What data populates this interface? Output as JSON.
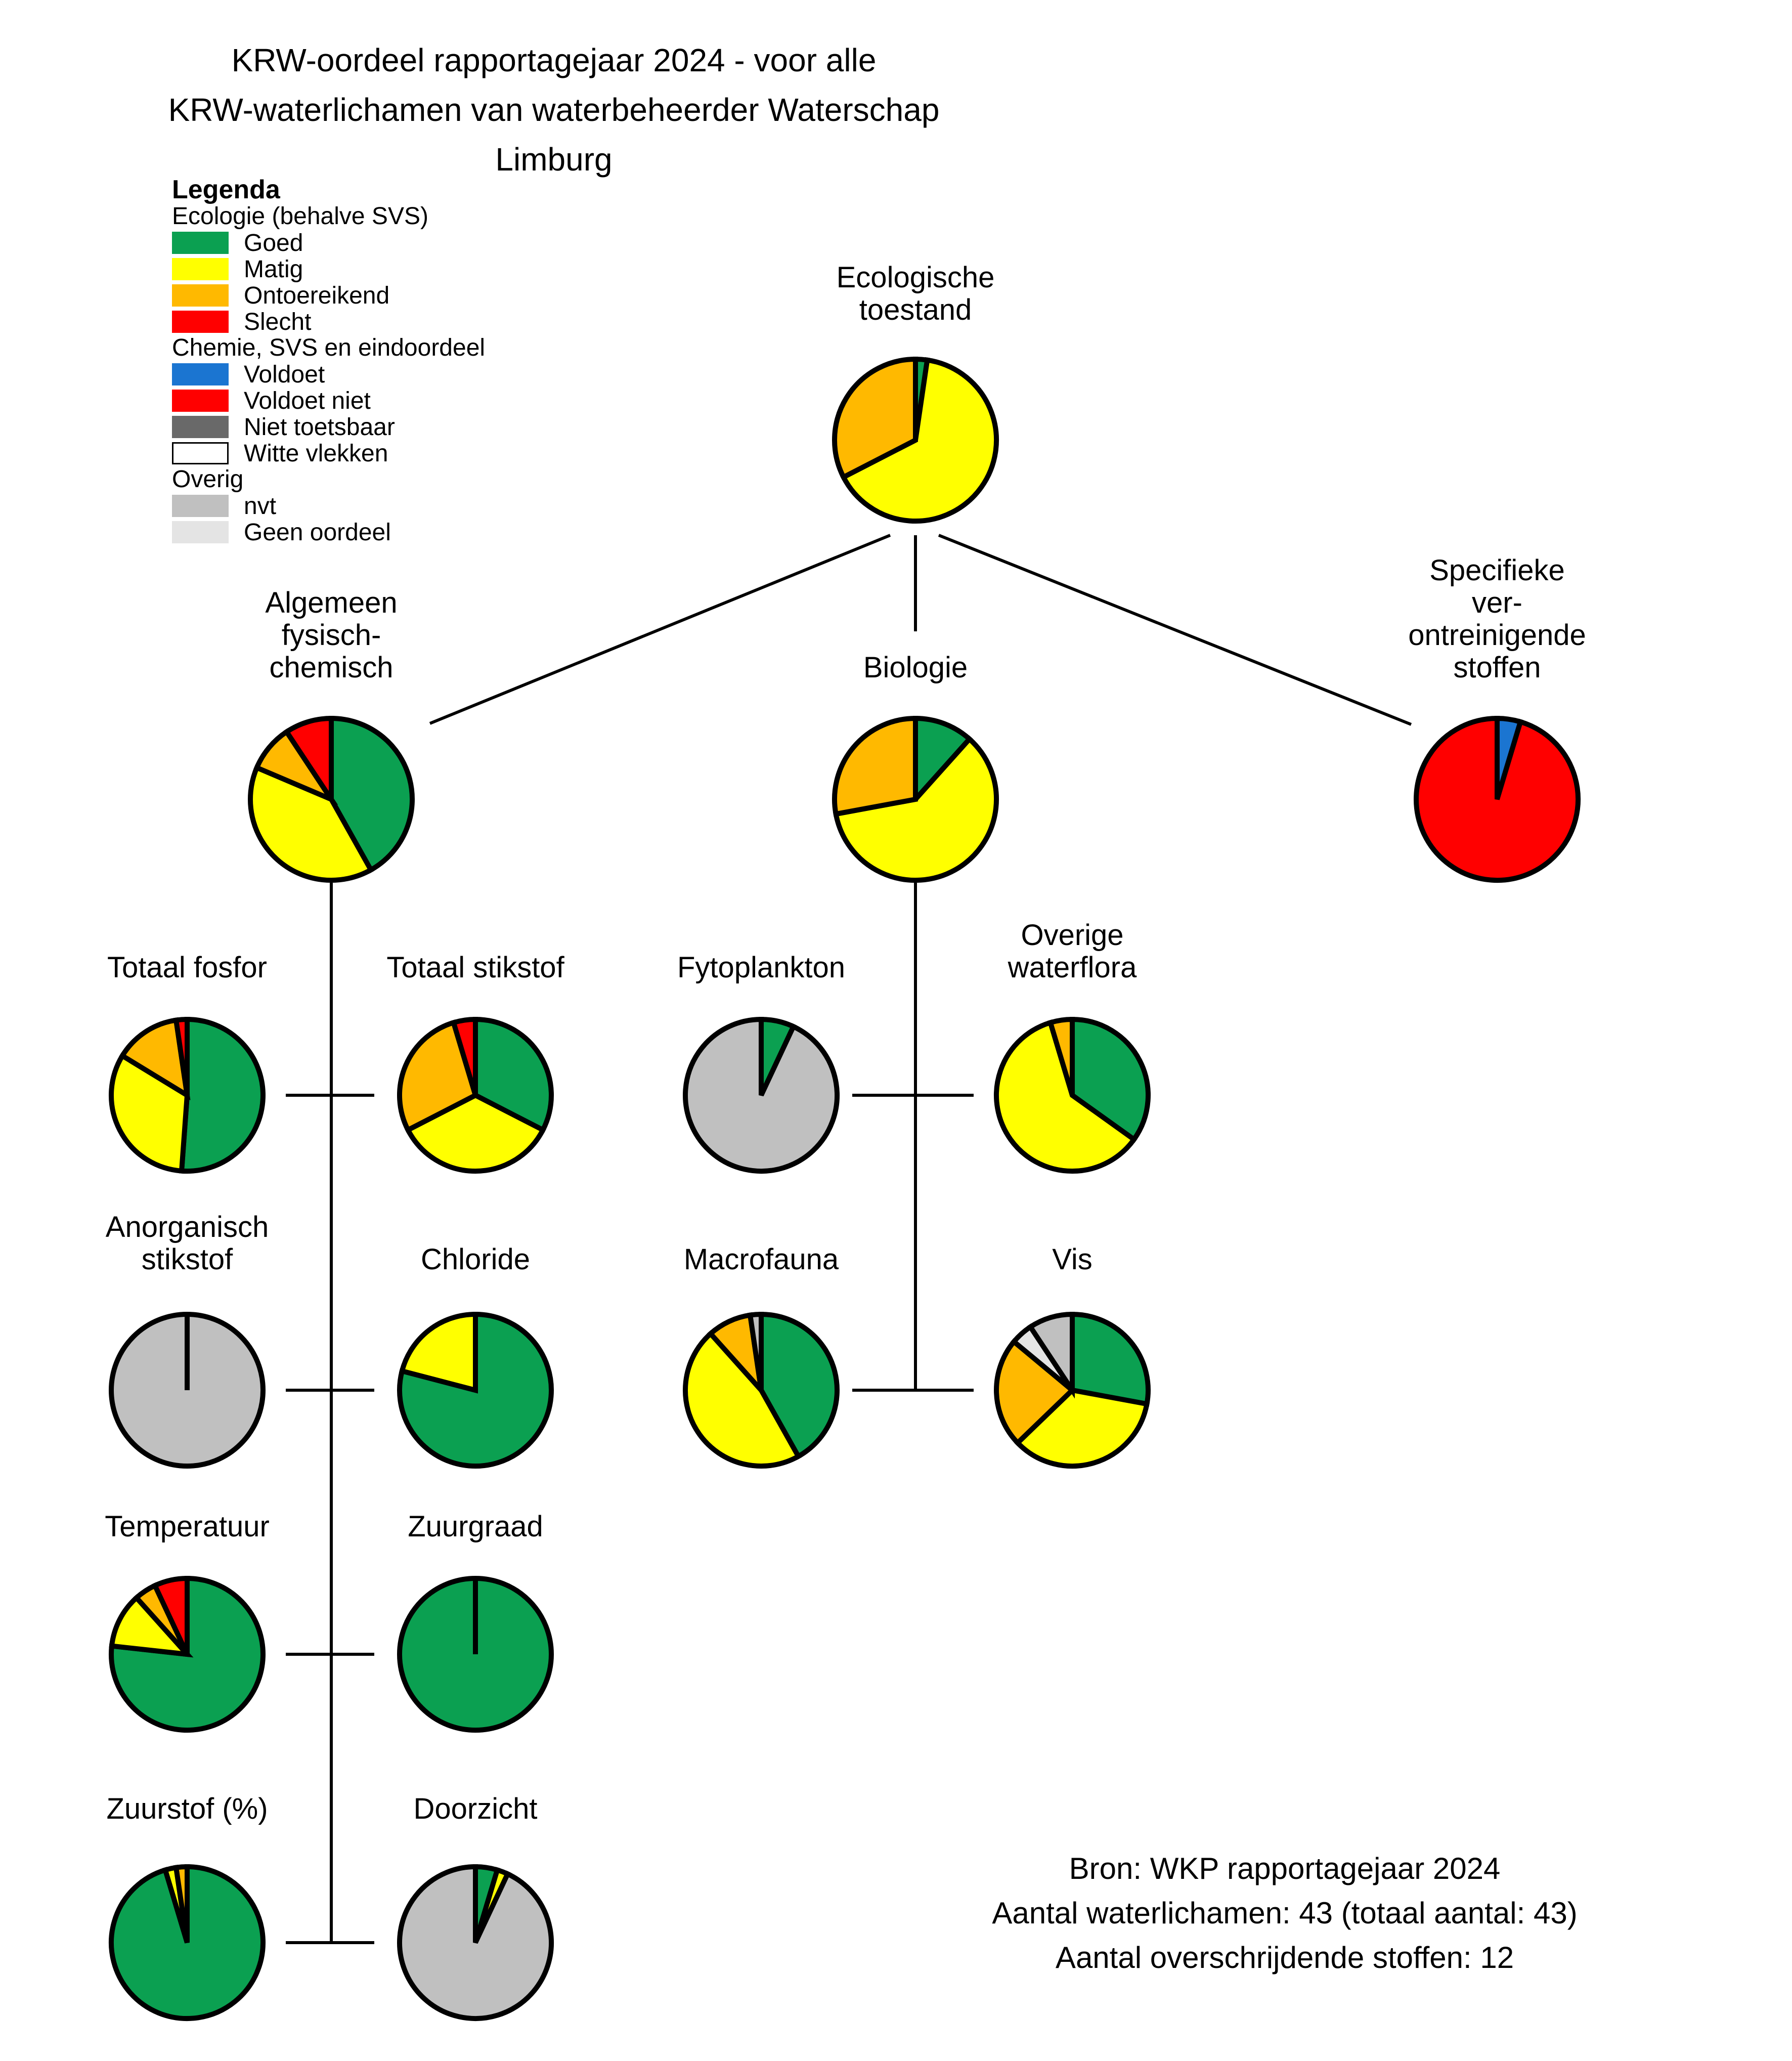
{
  "title": {
    "text": "KRW-oordeel rapportagejaar 2024 - voor alle\nKRW-waterlichamen van waterbeheerder Waterschap Limburg"
  },
  "palette": {
    "goed": "#0BA051",
    "matig": "#FFFF00",
    "ontoereikend": "#FFB900",
    "slecht": "#FF0000",
    "voldoet": "#1B75D1",
    "voldoet_niet": "#FF0000",
    "niet_toetsbaar": "#696969",
    "witte_vlekken": "#FFFFFF",
    "nvt": "#C0C0C0",
    "geen_oordeel": "#E4E4E4"
  },
  "legend": {
    "heading": "Legenda",
    "sections": [
      {
        "title": "Ecologie (behalve SVS)",
        "items": [
          {
            "key": "goed",
            "label": "Goed"
          },
          {
            "key": "matig",
            "label": "Matig"
          },
          {
            "key": "ontoereikend",
            "label": "Ontoereikend"
          },
          {
            "key": "slecht",
            "label": "Slecht"
          }
        ]
      },
      {
        "title": "Chemie, SVS en eindoordeel",
        "items": [
          {
            "key": "voldoet",
            "label": "Voldoet"
          },
          {
            "key": "voldoet_niet",
            "label": "Voldoet niet"
          },
          {
            "key": "niet_toetsbaar",
            "label": "Niet toetsbaar"
          },
          {
            "key": "witte_vlekken",
            "label": "Witte vlekken"
          }
        ]
      },
      {
        "title": "Overig",
        "items": [
          {
            "key": "nvt",
            "label": "nvt"
          },
          {
            "key": "geen_oordeel",
            "label": "Geen oordeel"
          }
        ]
      }
    ]
  },
  "footer": {
    "source": "Bron: WKP rapportagejaar 2024",
    "water_bodies": "Aantal waterlichamen: 43 (totaal aantal: 43)",
    "exceeding_substances": "Aantal overschrijdende stoffen: 12"
  },
  "chart_data": [
    {
      "id": "ecologische_toestand",
      "type": "pie",
      "title": "Ecologische\ntoestand",
      "total": 43,
      "unit": "waterlichamen",
      "slices": [
        {
          "status": "Goed",
          "key": "goed",
          "value": 1
        },
        {
          "status": "Matig",
          "key": "matig",
          "value": 28
        },
        {
          "status": "Ontoereikend",
          "key": "ontoereikend",
          "value": 14
        }
      ]
    },
    {
      "id": "algemeen_fysisch_chemisch",
      "type": "pie",
      "title": "Algemeen\nfysisch-\nchemisch",
      "total": 43,
      "unit": "waterlichamen",
      "slices": [
        {
          "status": "Goed",
          "key": "goed",
          "value": 18
        },
        {
          "status": "Matig",
          "key": "matig",
          "value": 17
        },
        {
          "status": "Ontoereikend",
          "key": "ontoereikend",
          "value": 4
        },
        {
          "status": "Slecht",
          "key": "slecht",
          "value": 4
        }
      ]
    },
    {
      "id": "biologie",
      "type": "pie",
      "title": "Biologie",
      "total": 43,
      "unit": "waterlichamen",
      "slices": [
        {
          "status": "Goed",
          "key": "goed",
          "value": 5
        },
        {
          "status": "Matig",
          "key": "matig",
          "value": 26
        },
        {
          "status": "Ontoereikend",
          "key": "ontoereikend",
          "value": 12
        }
      ]
    },
    {
      "id": "specifieke_verontreinigende_stoffen",
      "type": "pie",
      "title": "Specifieke\nver-\nontreinigende\nstoffen",
      "total": 43,
      "unit": "waterlichamen",
      "slices": [
        {
          "status": "Voldoet",
          "key": "voldoet",
          "value": 2
        },
        {
          "status": "Voldoet niet",
          "key": "voldoet_niet",
          "value": 41
        }
      ]
    },
    {
      "id": "totaal_fosfor",
      "type": "pie",
      "title": "Totaal fosfor",
      "total": 43,
      "unit": "waterlichamen",
      "slices": [
        {
          "status": "Goed",
          "key": "goed",
          "value": 22
        },
        {
          "status": "Matig",
          "key": "matig",
          "value": 14
        },
        {
          "status": "Ontoereikend",
          "key": "ontoereikend",
          "value": 6
        },
        {
          "status": "Slecht",
          "key": "slecht",
          "value": 1
        }
      ]
    },
    {
      "id": "totaal_stikstof",
      "type": "pie",
      "title": "Totaal stikstof",
      "total": 43,
      "unit": "waterlichamen",
      "slices": [
        {
          "status": "Goed",
          "key": "goed",
          "value": 14
        },
        {
          "status": "Matig",
          "key": "matig",
          "value": 15
        },
        {
          "status": "Ontoereikend",
          "key": "ontoereikend",
          "value": 12
        },
        {
          "status": "Slecht",
          "key": "slecht",
          "value": 2
        }
      ]
    },
    {
      "id": "fytoplankton",
      "type": "pie",
      "title": "Fytoplankton",
      "total": 43,
      "unit": "waterlichamen",
      "slices": [
        {
          "status": "Goed",
          "key": "goed",
          "value": 3
        },
        {
          "status": "nvt",
          "key": "nvt",
          "value": 40
        }
      ]
    },
    {
      "id": "overige_waterflora",
      "type": "pie",
      "title": "Overige\nwaterflora",
      "total": 43,
      "unit": "waterlichamen",
      "slices": [
        {
          "status": "Goed",
          "key": "goed",
          "value": 15
        },
        {
          "status": "Matig",
          "key": "matig",
          "value": 26
        },
        {
          "status": "Ontoereikend",
          "key": "ontoereikend",
          "value": 2
        }
      ]
    },
    {
      "id": "anorganisch_stikstof",
      "type": "pie",
      "title": "Anorganisch\nstikstof",
      "total": 43,
      "unit": "waterlichamen",
      "slices": [
        {
          "status": "nvt",
          "key": "nvt",
          "value": 43
        }
      ]
    },
    {
      "id": "chloride",
      "type": "pie",
      "title": "Chloride",
      "total": 43,
      "unit": "waterlichamen",
      "slices": [
        {
          "status": "Goed",
          "key": "goed",
          "value": 34
        },
        {
          "status": "Matig",
          "key": "matig",
          "value": 9
        }
      ]
    },
    {
      "id": "macrofauna",
      "type": "pie",
      "title": "Macrofauna",
      "total": 43,
      "unit": "waterlichamen",
      "slices": [
        {
          "status": "Goed",
          "key": "goed",
          "value": 18
        },
        {
          "status": "Matig",
          "key": "matig",
          "value": 20
        },
        {
          "status": "Ontoereikend",
          "key": "ontoereikend",
          "value": 4
        },
        {
          "status": "nvt",
          "key": "nvt",
          "value": 1
        }
      ]
    },
    {
      "id": "vis",
      "type": "pie",
      "title": "Vis",
      "total": 43,
      "unit": "waterlichamen",
      "slices": [
        {
          "status": "Goed",
          "key": "goed",
          "value": 12
        },
        {
          "status": "Matig",
          "key": "matig",
          "value": 15
        },
        {
          "status": "Ontoereikend",
          "key": "ontoereikend",
          "value": 10
        },
        {
          "status": "Geen oordeel",
          "key": "geen_oordeel",
          "value": 2
        },
        {
          "status": "nvt",
          "key": "nvt",
          "value": 4
        }
      ]
    },
    {
      "id": "temperatuur",
      "type": "pie",
      "title": "Temperatuur",
      "total": 43,
      "unit": "waterlichamen",
      "slices": [
        {
          "status": "Goed",
          "key": "goed",
          "value": 33
        },
        {
          "status": "Matig",
          "key": "matig",
          "value": 5
        },
        {
          "status": "Ontoereikend",
          "key": "ontoereikend",
          "value": 2
        },
        {
          "status": "Slecht",
          "key": "slecht",
          "value": 3
        }
      ]
    },
    {
      "id": "zuurgraad",
      "type": "pie",
      "title": "Zuurgraad",
      "total": 43,
      "unit": "waterlichamen",
      "slices": [
        {
          "status": "Goed",
          "key": "goed",
          "value": 43
        }
      ]
    },
    {
      "id": "zuurstof_pct",
      "type": "pie",
      "title": "Zuurstof (%)",
      "total": 43,
      "unit": "waterlichamen",
      "slices": [
        {
          "status": "Goed",
          "key": "goed",
          "value": 41
        },
        {
          "status": "Matig",
          "key": "matig",
          "value": 1
        },
        {
          "status": "Ontoereikend",
          "key": "ontoereikend",
          "value": 1
        }
      ]
    },
    {
      "id": "doorzicht",
      "type": "pie",
      "title": "Doorzicht",
      "total": 43,
      "unit": "waterlichamen",
      "slices": [
        {
          "status": "Goed",
          "key": "goed",
          "value": 2
        },
        {
          "status": "Matig",
          "key": "matig",
          "value": 1
        },
        {
          "status": "nvt",
          "key": "nvt",
          "value": 40
        }
      ]
    }
  ]
}
